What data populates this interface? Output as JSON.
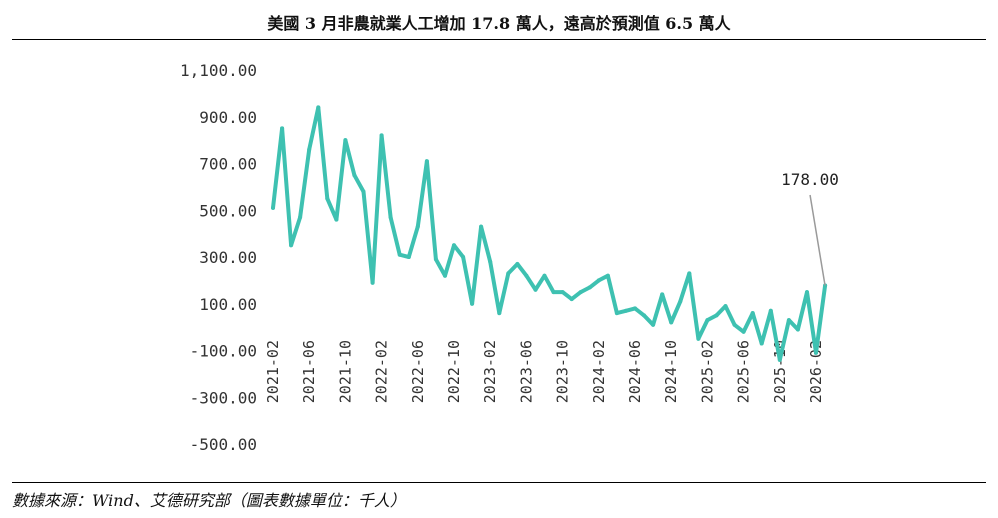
{
  "title": "美國 3 月非農就業人工增加 17.8 萬人，遠高於預測值 6.5 萬人",
  "source": "數據來源：Wind、艾德研究部（圖表數據單位：千人）",
  "colors": {
    "line": "#3ec1b1",
    "callout_line": "#9a9a9a",
    "rule": "#000000"
  },
  "chart_data": {
    "type": "line",
    "title": "美國 3 月非農就業人工增加 17.8 萬人，遠高於預測值 6.5 萬人",
    "xlabel": "",
    "ylabel": "",
    "ylim": [
      -500,
      1100
    ],
    "yticks": [
      -500,
      -300,
      -100,
      100,
      300,
      500,
      700,
      900,
      1100
    ],
    "ytick_labels": [
      "-500.00",
      "-300.00",
      "-100.00",
      "100.00",
      "300.00",
      "500.00",
      "700.00",
      "900.00",
      "1,100.00"
    ],
    "xtick_labels": [
      "2021-02",
      "2021-06",
      "2021-10",
      "2022-02",
      "2022-06",
      "2022-10",
      "2023-02",
      "2023-06",
      "2023-10",
      "2024-02",
      "2024-06",
      "2024-10",
      "2025-02",
      "2025-06",
      "2025-10",
      "2026-02"
    ],
    "grid": false,
    "legend": "none",
    "annotation": {
      "text": "178.00",
      "x": "2026-03",
      "y": 178
    },
    "x": [
      "2021-02",
      "2021-03",
      "2021-04",
      "2021-05",
      "2021-06",
      "2021-07",
      "2021-08",
      "2021-09",
      "2021-10",
      "2021-11",
      "2021-12",
      "2022-01",
      "2022-02",
      "2022-03",
      "2022-04",
      "2022-05",
      "2022-06",
      "2022-07",
      "2022-08",
      "2022-09",
      "2022-10",
      "2022-11",
      "2022-12",
      "2023-01",
      "2023-02",
      "2023-03",
      "2023-04",
      "2023-05",
      "2023-06",
      "2023-07",
      "2023-08",
      "2023-09",
      "2023-10",
      "2023-11",
      "2023-12",
      "2024-01",
      "2024-02",
      "2024-03",
      "2024-04",
      "2024-05",
      "2024-06",
      "2024-07",
      "2024-08",
      "2024-09",
      "2024-10",
      "2024-11",
      "2024-12",
      "2025-01",
      "2025-02",
      "2025-03",
      "2025-04",
      "2025-05",
      "2025-06",
      "2025-07",
      "2025-08",
      "2025-09",
      "2025-10",
      "2025-11",
      "2025-12",
      "2026-01",
      "2026-02",
      "2026-03"
    ],
    "series": [
      {
        "values": [
          510,
          850,
          350,
          470,
          760,
          940,
          550,
          460,
          800,
          650,
          580,
          190,
          820,
          470,
          310,
          300,
          430,
          710,
          290,
          220,
          350,
          300,
          100,
          430,
          280,
          60,
          230,
          270,
          220,
          160,
          220,
          150,
          150,
          120,
          150,
          170,
          200,
          220,
          60,
          70,
          80,
          50,
          10,
          140,
          20,
          110,
          230,
          -50,
          30,
          50,
          90,
          10,
          -20,
          60,
          -70,
          70,
          -140,
          30,
          -10,
          150,
          -110,
          178
        ]
      }
    ]
  }
}
